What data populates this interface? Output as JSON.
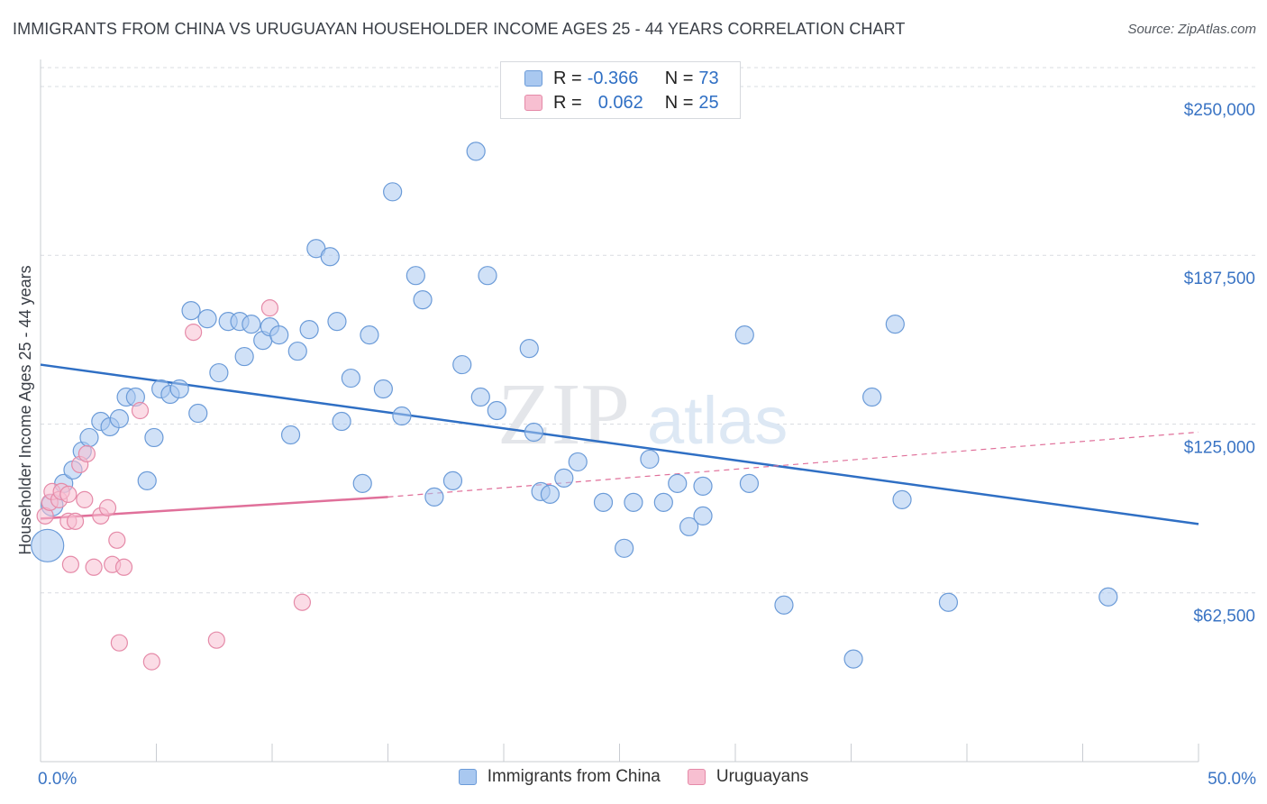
{
  "header": {
    "title": "IMMIGRANTS FROM CHINA VS URUGUAYAN HOUSEHOLDER INCOME AGES 25 - 44 YEARS CORRELATION CHART",
    "source": "Source: ZipAtlas.com"
  },
  "watermark": {
    "zip": "ZIP",
    "atlas": "atlas"
  },
  "legend": {
    "rows": [
      {
        "r_label": "R =",
        "r_value": "-0.366",
        "n_label": "N =",
        "n_value": "73",
        "color": "#a9c8f0",
        "stroke": "#6b9bd8"
      },
      {
        "r_label": "R =",
        "r_value": "0.062",
        "n_label": "N =",
        "n_value": "25",
        "color": "#f7bfd1",
        "stroke": "#e58aa8"
      }
    ]
  },
  "bottom_legend": {
    "items": [
      {
        "label": "Immigrants from China",
        "color": "#a9c8f0",
        "stroke": "#6b9bd8"
      },
      {
        "label": "Uruguayans",
        "color": "#f7bfd1",
        "stroke": "#e58aa8"
      }
    ]
  },
  "chart_data": {
    "type": "scatter",
    "title": "IMMIGRANTS FROM CHINA VS URUGUAYAN HOUSEHOLDER INCOME AGES 25 - 44 YEARS CORRELATION CHART",
    "xlabel": "",
    "ylabel": "Householder Income Ages 25 - 44 years",
    "xlim": [
      0,
      50
    ],
    "ylim": [
      0,
      260000
    ],
    "x_tick_labels": [
      "0.0%",
      "50.0%"
    ],
    "y_ticks": [
      62500,
      125000,
      187500,
      250000
    ],
    "y_tick_labels": [
      "$62,500",
      "$125,000",
      "$187,500",
      "$250,000"
    ],
    "grid": "horizontal dashed",
    "legend_position": "top-center",
    "series": [
      {
        "name": "Immigrants from China",
        "color": "#6b9bd8",
        "fill": "#a9c8f0",
        "trend": {
          "x": [
            0,
            50
          ],
          "y": [
            147000,
            88000
          ],
          "style": "solid",
          "color": "#2f6fc4"
        },
        "points": [
          [
            0.3,
            80000,
            18
          ],
          [
            0.5,
            95000,
            12
          ],
          [
            1.0,
            103000,
            10
          ],
          [
            1.4,
            108000,
            10
          ],
          [
            1.8,
            115000,
            10
          ],
          [
            2.1,
            120000,
            10
          ],
          [
            2.6,
            126000,
            10
          ],
          [
            3.0,
            124000,
            10
          ],
          [
            3.4,
            127000,
            10
          ],
          [
            3.7,
            135000,
            10
          ],
          [
            4.1,
            135000,
            10
          ],
          [
            4.6,
            104000,
            10
          ],
          [
            4.9,
            120000,
            10
          ],
          [
            5.2,
            138000,
            10
          ],
          [
            5.6,
            136000,
            10
          ],
          [
            6.0,
            138000,
            10
          ],
          [
            6.5,
            167000,
            10
          ],
          [
            6.8,
            129000,
            10
          ],
          [
            7.2,
            164000,
            10
          ],
          [
            7.7,
            144000,
            10
          ],
          [
            8.1,
            163000,
            10
          ],
          [
            8.6,
            163000,
            10
          ],
          [
            8.8,
            150000,
            10
          ],
          [
            9.1,
            162000,
            10
          ],
          [
            9.6,
            156000,
            10
          ],
          [
            9.9,
            161000,
            10
          ],
          [
            10.3,
            158000,
            10
          ],
          [
            10.8,
            121000,
            10
          ],
          [
            11.1,
            152000,
            10
          ],
          [
            11.6,
            160000,
            10
          ],
          [
            11.9,
            190000,
            10
          ],
          [
            12.5,
            187000,
            10
          ],
          [
            12.8,
            163000,
            10
          ],
          [
            13.0,
            126000,
            10
          ],
          [
            13.4,
            142000,
            10
          ],
          [
            13.9,
            103000,
            10
          ],
          [
            14.2,
            158000,
            10
          ],
          [
            14.8,
            138000,
            10
          ],
          [
            15.2,
            211000,
            10
          ],
          [
            15.6,
            128000,
            10
          ],
          [
            16.2,
            180000,
            10
          ],
          [
            16.5,
            171000,
            10
          ],
          [
            17.0,
            98000,
            10
          ],
          [
            17.8,
            104000,
            10
          ],
          [
            18.2,
            147000,
            10
          ],
          [
            18.8,
            226000,
            10
          ],
          [
            19.0,
            135000,
            10
          ],
          [
            19.3,
            180000,
            10
          ],
          [
            19.7,
            130000,
            10
          ],
          [
            21.1,
            153000,
            10
          ],
          [
            21.3,
            122000,
            10
          ],
          [
            21.6,
            100000,
            10
          ],
          [
            22.0,
            99000,
            10
          ],
          [
            22.6,
            105000,
            10
          ],
          [
            23.2,
            111000,
            10
          ],
          [
            24.3,
            96000,
            10
          ],
          [
            25.2,
            79000,
            10
          ],
          [
            25.6,
            96000,
            10
          ],
          [
            26.3,
            112000,
            10
          ],
          [
            26.9,
            96000,
            10
          ],
          [
            27.5,
            103000,
            10
          ],
          [
            28.0,
            87000,
            10
          ],
          [
            28.6,
            91000,
            10
          ],
          [
            28.6,
            102000,
            10
          ],
          [
            30.4,
            158000,
            10
          ],
          [
            30.6,
            103000,
            10
          ],
          [
            32.1,
            58000,
            10
          ],
          [
            35.1,
            38000,
            10
          ],
          [
            35.9,
            135000,
            10
          ],
          [
            36.9,
            162000,
            10
          ],
          [
            37.2,
            97000,
            10
          ],
          [
            39.2,
            59000,
            10
          ],
          [
            46.1,
            61000,
            10
          ]
        ]
      },
      {
        "name": "Uruguayans",
        "color": "#e58aa8",
        "fill": "#f7bfd1",
        "trend": {
          "x": [
            0,
            15
          ],
          "y": [
            90000,
            98000
          ],
          "style": "solid",
          "color": "#e0709a",
          "extension": {
            "x": [
              15,
              50
            ],
            "y": [
              98000,
              122000
            ],
            "style": "dashed"
          }
        },
        "points": [
          [
            0.2,
            91000,
            9
          ],
          [
            0.4,
            96000,
            9
          ],
          [
            0.5,
            100000,
            9
          ],
          [
            0.8,
            97000,
            9
          ],
          [
            0.9,
            100000,
            9
          ],
          [
            1.2,
            99000,
            9
          ],
          [
            1.2,
            89000,
            9
          ],
          [
            1.3,
            73000,
            9
          ],
          [
            1.5,
            89000,
            9
          ],
          [
            1.7,
            110000,
            9
          ],
          [
            1.9,
            97000,
            9
          ],
          [
            2.0,
            114000,
            9
          ],
          [
            2.3,
            72000,
            9
          ],
          [
            2.6,
            91000,
            9
          ],
          [
            2.9,
            94000,
            9
          ],
          [
            3.1,
            73000,
            9
          ],
          [
            3.3,
            82000,
            9
          ],
          [
            3.6,
            72000,
            9
          ],
          [
            3.4,
            44000,
            9
          ],
          [
            4.3,
            130000,
            9
          ],
          [
            4.8,
            37000,
            9
          ],
          [
            6.6,
            159000,
            9
          ],
          [
            7.6,
            45000,
            9
          ],
          [
            9.9,
            168000,
            9
          ],
          [
            11.3,
            59000,
            9
          ]
        ]
      }
    ]
  }
}
